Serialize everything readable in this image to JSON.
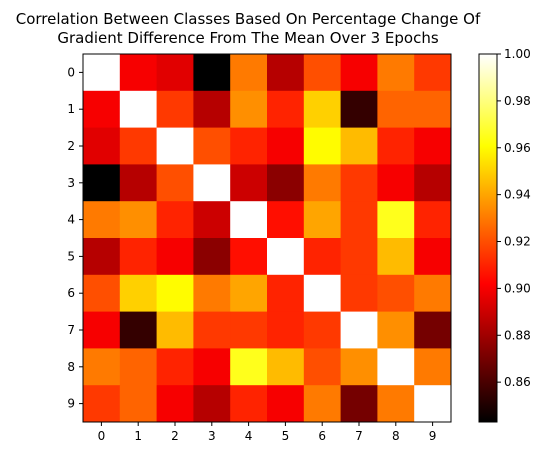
{
  "chart_data": {
    "type": "heatmap",
    "title": "Correlation Between Classes Based On Percentage Change Of Gradient Difference From The Mean Over 3 Epochs",
    "title_lines": [
      "Correlation Between Classes Based On Percentage Change Of",
      "Gradient Difference From The Mean Over 3 Epochs"
    ],
    "xlabel": "",
    "ylabel": "",
    "x_categories": [
      "0",
      "1",
      "2",
      "3",
      "4",
      "5",
      "6",
      "7",
      "8",
      "9"
    ],
    "y_categories": [
      "0",
      "1",
      "2",
      "3",
      "4",
      "5",
      "6",
      "7",
      "8",
      "9"
    ],
    "colormap": "hot",
    "vmin": 0.843,
    "vmax": 1.0,
    "colorbar_ticks": [
      "0.86",
      "0.88",
      "0.90",
      "0.92",
      "0.94",
      "0.96",
      "0.98",
      "1.00"
    ],
    "values": [
      [
        1.0,
        0.9,
        0.895,
        0.843,
        0.93,
        0.885,
        0.92,
        0.9,
        0.93,
        0.915
      ],
      [
        0.9,
        1.0,
        0.915,
        0.885,
        0.935,
        0.91,
        0.95,
        0.855,
        0.925,
        0.925
      ],
      [
        0.895,
        0.915,
        1.0,
        0.92,
        0.91,
        0.9,
        0.96,
        0.945,
        0.91,
        0.9
      ],
      [
        0.843,
        0.885,
        0.92,
        1.0,
        0.89,
        0.875,
        0.93,
        0.915,
        0.9,
        0.885
      ],
      [
        0.93,
        0.935,
        0.91,
        0.89,
        1.0,
        0.905,
        0.94,
        0.915,
        0.965,
        0.91
      ],
      [
        0.885,
        0.91,
        0.9,
        0.875,
        0.905,
        1.0,
        0.91,
        0.915,
        0.945,
        0.9
      ],
      [
        0.92,
        0.95,
        0.96,
        0.93,
        0.94,
        0.91,
        1.0,
        0.915,
        0.92,
        0.93
      ],
      [
        0.9,
        0.855,
        0.945,
        0.915,
        0.915,
        0.91,
        0.915,
        1.0,
        0.935,
        0.87
      ],
      [
        0.93,
        0.925,
        0.91,
        0.9,
        0.965,
        0.945,
        0.92,
        0.935,
        1.0,
        0.93
      ],
      [
        0.915,
        0.925,
        0.9,
        0.885,
        0.91,
        0.9,
        0.93,
        0.87,
        0.93,
        1.0
      ]
    ]
  }
}
